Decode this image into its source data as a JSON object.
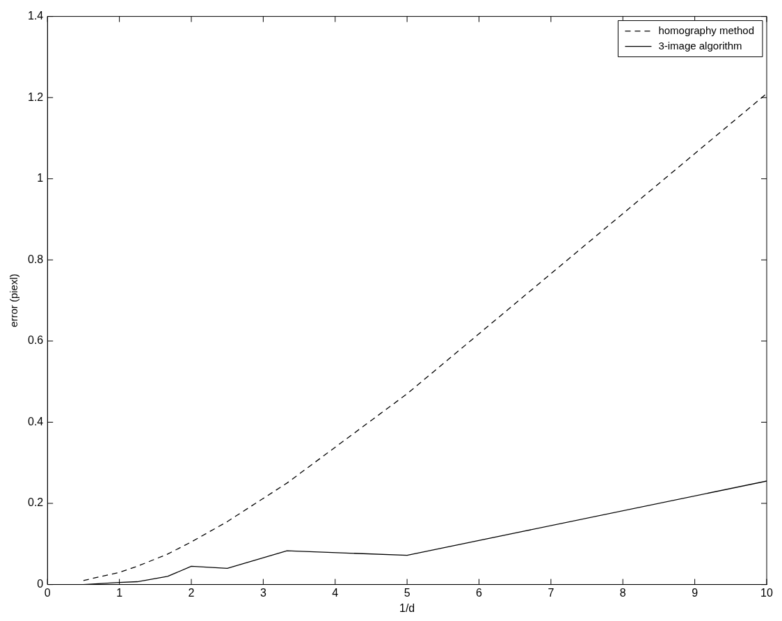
{
  "chart_data": {
    "type": "line",
    "xlabel": "1/d",
    "ylabel": "error (piexl)",
    "xlim": [
      0,
      10
    ],
    "xticks": [
      0,
      1,
      2,
      3,
      4,
      5,
      6,
      7,
      8,
      9,
      10
    ],
    "ylim": [
      0,
      1.4
    ],
    "yticks": [
      0,
      0.2,
      0.4,
      0.6,
      0.8,
      1,
      1.2,
      1.4
    ],
    "grid": false,
    "legend": "top right",
    "marker": "none",
    "series": [
      {
        "name": "homography method",
        "color": "#000000",
        "line_style": "dashed",
        "x": [
          0.5,
          1,
          1.25,
          1.67,
          2,
          2.5,
          3.33,
          5,
          10
        ],
        "values": [
          0.01,
          0.03,
          0.045,
          0.075,
          0.105,
          0.155,
          0.25,
          0.47,
          1.21
        ]
      },
      {
        "name": "3-image algorithm",
        "color": "#000000",
        "line_style": "solid",
        "x": [
          0.5,
          1,
          1.25,
          1.67,
          2,
          2.5,
          3.33,
          5,
          10
        ],
        "values": [
          0,
          0.005,
          0.007,
          0.02,
          0.045,
          0.04,
          0.083,
          0.072,
          0.255
        ]
      }
    ]
  }
}
